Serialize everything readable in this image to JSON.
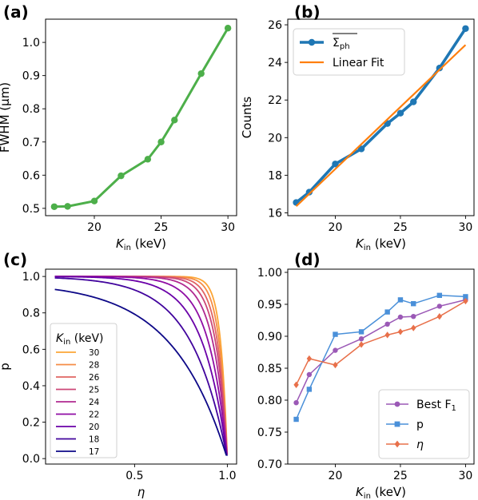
{
  "chart_data": [
    {
      "panel_label": "(a)",
      "type": "line",
      "x": [
        17,
        18,
        20,
        22,
        24,
        25,
        26,
        28,
        30
      ],
      "series": [
        {
          "values": [
            0.505,
            0.506,
            0.522,
            0.598,
            0.648,
            0.7,
            0.766,
            0.906,
            1.043
          ],
          "color": "#4daf4a",
          "marker": "circle"
        }
      ],
      "xlabel": "K_in (keV)",
      "ylabel": "FWHM (μm)",
      "xlim": [
        16.35,
        30.65
      ],
      "ylim": [
        0.478,
        1.07
      ],
      "xticks": [
        20,
        25,
        30
      ],
      "yticks": [
        0.5,
        0.6,
        0.7,
        0.8,
        0.9,
        1.0
      ],
      "yticklabels": [
        "0.5",
        "0.6",
        "0.7",
        "0.8",
        "0.9",
        "1.0"
      ]
    },
    {
      "panel_label": "(b)",
      "type": "line",
      "x": [
        17,
        18,
        20,
        22,
        24,
        25,
        26,
        28,
        30
      ],
      "series": [
        {
          "name": "Σ̅ph",
          "values": [
            16.55,
            17.1,
            18.6,
            19.4,
            20.75,
            21.3,
            21.9,
            23.7,
            25.8
          ],
          "color": "#1f77b4",
          "marker": "circle"
        },
        {
          "name": "Linear Fit",
          "values": [
            16.35,
            17.01,
            18.33,
            19.65,
            20.97,
            21.63,
            22.29,
            23.61,
            24.93
          ],
          "color": "#ff7f0e",
          "marker": "none"
        }
      ],
      "xlabel": "K_in (keV)",
      "ylabel": "Counts",
      "xlim": [
        16.35,
        30.65
      ],
      "ylim": [
        15.85,
        26.3
      ],
      "xticks": [
        20,
        25,
        30
      ],
      "yticks": [
        16,
        18,
        20,
        22,
        24,
        26
      ],
      "yticklabels": [
        "16",
        "18",
        "20",
        "22",
        "24",
        "26"
      ],
      "legend": "top-left"
    },
    {
      "panel_label": "(c)",
      "type": "line",
      "xlabel": "η",
      "ylabel": "p",
      "xlim": [
        0.02,
        1.05
      ],
      "ylim": [
        -0.03,
        1.04
      ],
      "xticks": [
        0.5,
        1.0
      ],
      "xticklabels": [
        "0.5",
        "1.0"
      ],
      "yticks": [
        0.0,
        0.2,
        0.4,
        0.6,
        0.8,
        1.0
      ],
      "yticklabels": [
        "0.0",
        "0.2",
        "0.4",
        "0.6",
        "0.8",
        "1.0"
      ],
      "legend_title": "K_in (keV)",
      "legend": "middle-left",
      "series": [
        {
          "name": "30",
          "color": "#fca636",
          "k": 28
        },
        {
          "name": "28",
          "color": "#f58c46",
          "k": 23
        },
        {
          "name": "26",
          "color": "#e16462",
          "k": 19
        },
        {
          "name": "25",
          "color": "#cc4778",
          "k": 16
        },
        {
          "name": "24",
          "color": "#b12a90",
          "k": 13
        },
        {
          "name": "22",
          "color": "#8f0da4",
          "k": 10
        },
        {
          "name": "20",
          "color": "#6a00a8",
          "k": 7.5
        },
        {
          "name": "18",
          "color": "#41049d",
          "k": 5.2
        },
        {
          "name": "17",
          "color": "#0d0887",
          "k": 3.4,
          "start": 0.97
        }
      ]
    },
    {
      "panel_label": "(d)",
      "type": "line",
      "x": [
        17,
        18,
        20,
        22,
        24,
        25,
        26,
        28,
        30
      ],
      "series": [
        {
          "name": "Best F",
          "name_sub": "1",
          "values": [
            0.796,
            0.84,
            0.878,
            0.896,
            0.919,
            0.93,
            0.931,
            0.947,
            0.957
          ],
          "color": "#9b59b6",
          "marker": "circle"
        },
        {
          "name": "p",
          "values": [
            0.77,
            0.817,
            0.903,
            0.907,
            0.938,
            0.957,
            0.951,
            0.964,
            0.962
          ],
          "color": "#4a90d9",
          "marker": "square"
        },
        {
          "name": "η",
          "values": [
            0.824,
            0.865,
            0.855,
            0.887,
            0.902,
            0.907,
            0.913,
            0.931,
            0.955
          ],
          "color": "#e8704a",
          "marker": "diamond"
        }
      ],
      "xlabel": "K_in (keV)",
      "xlim": [
        16.35,
        30.65
      ],
      "ylim": [
        0.7,
        1.005
      ],
      "xticks": [
        20,
        25,
        30
      ],
      "yticks": [
        0.7,
        0.75,
        0.8,
        0.85,
        0.9,
        0.95,
        1.0
      ],
      "yticklabels": [
        "0.70",
        "0.75",
        "0.80",
        "0.85",
        "0.90",
        "0.95",
        "1.00"
      ],
      "legend": "bottom-right"
    }
  ]
}
